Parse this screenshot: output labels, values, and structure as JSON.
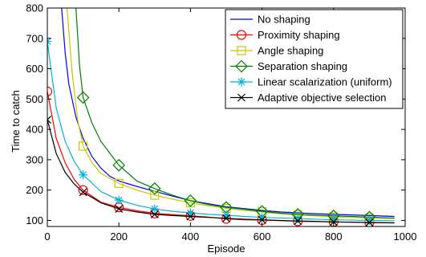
{
  "chart_data": {
    "type": "line",
    "title": "",
    "xlabel": "Episode",
    "ylabel": "Time to catch",
    "xlim": [
      0,
      1000
    ],
    "ylim": [
      80,
      800
    ],
    "xticks": [
      0,
      200,
      400,
      600,
      800,
      1000
    ],
    "yticks": [
      100,
      200,
      300,
      400,
      500,
      600,
      700,
      800
    ],
    "grid": false,
    "legend_position": "top-right",
    "marker_x": [
      0,
      100,
      200,
      300,
      400,
      500,
      600,
      700,
      800,
      900
    ],
    "series": [
      {
        "name": "No shaping",
        "color": "#0000ff",
        "marker": "none",
        "x": [
          40,
          50,
          60,
          80,
          100,
          125,
          150,
          175,
          200,
          250,
          300,
          350,
          400,
          450,
          500,
          550,
          600,
          650,
          700,
          750,
          800,
          850,
          900,
          970
        ],
        "y": [
          800,
          650,
          550,
          440,
          370,
          310,
          272,
          245,
          230,
          212,
          196,
          180,
          165,
          155,
          145,
          139,
          133,
          128,
          125,
          122,
          120,
          118,
          116,
          113
        ]
      },
      {
        "name": "Proximity shaping",
        "color": "#ff0000",
        "marker": "circle",
        "x": [
          0,
          25,
          50,
          75,
          100,
          150,
          200,
          250,
          300,
          350,
          400,
          450,
          500,
          550,
          600,
          650,
          700,
          750,
          800,
          850,
          900,
          970
        ],
        "y": [
          525,
          370,
          290,
          235,
          200,
          160,
          143,
          132,
          123,
          119,
          115,
          111,
          105,
          102,
          101,
          99,
          97,
          96,
          95,
          94,
          93,
          92
        ]
      },
      {
        "name": "Angle shaping",
        "color": "#c8c800",
        "marker": "square",
        "x": [
          55,
          70,
          85,
          100,
          125,
          150,
          200,
          250,
          300,
          350,
          400,
          450,
          500,
          550,
          600,
          650,
          700,
          750,
          800,
          850,
          900,
          970
        ],
        "y": [
          800,
          580,
          430,
          345,
          290,
          255,
          222,
          200,
          183,
          170,
          158,
          148,
          140,
          133,
          128,
          122,
          118,
          115,
          112,
          110,
          108,
          106
        ]
      },
      {
        "name": "Separation shaping",
        "color": "#008000",
        "marker": "diamond",
        "x": [
          80,
          90,
          100,
          125,
          150,
          200,
          250,
          300,
          350,
          400,
          450,
          500,
          550,
          600,
          650,
          700,
          750,
          800,
          850,
          900,
          970
        ],
        "y": [
          800,
          610,
          505,
          420,
          360,
          282,
          230,
          205,
          183,
          165,
          152,
          143,
          137,
          130,
          124,
          120,
          117,
          115,
          113,
          111,
          108
        ]
      },
      {
        "name": "Linear scalarization (uniform)",
        "color": "#00b4d8",
        "marker": "asterisk",
        "x": [
          0,
          25,
          50,
          75,
          100,
          150,
          200,
          250,
          300,
          350,
          400,
          450,
          500,
          550,
          600,
          650,
          700,
          750,
          800,
          850,
          900,
          970
        ],
        "y": [
          690,
          470,
          360,
          295,
          250,
          195,
          167,
          150,
          138,
          130,
          125,
          120,
          117,
          113,
          110,
          108,
          106,
          104,
          102,
          101,
          100,
          99
        ]
      },
      {
        "name": "Adaptive objective selection",
        "color": "#000000",
        "marker": "x",
        "x": [
          0,
          25,
          50,
          75,
          100,
          150,
          200,
          250,
          300,
          350,
          400,
          450,
          500,
          550,
          600,
          650,
          700,
          750,
          800,
          850,
          900,
          970
        ],
        "y": [
          432,
          320,
          258,
          220,
          193,
          158,
          138,
          128,
          120,
          116,
          113,
          110,
          107,
          104,
          102,
          100,
          98,
          97,
          95,
          94,
          93,
          92
        ]
      }
    ]
  }
}
